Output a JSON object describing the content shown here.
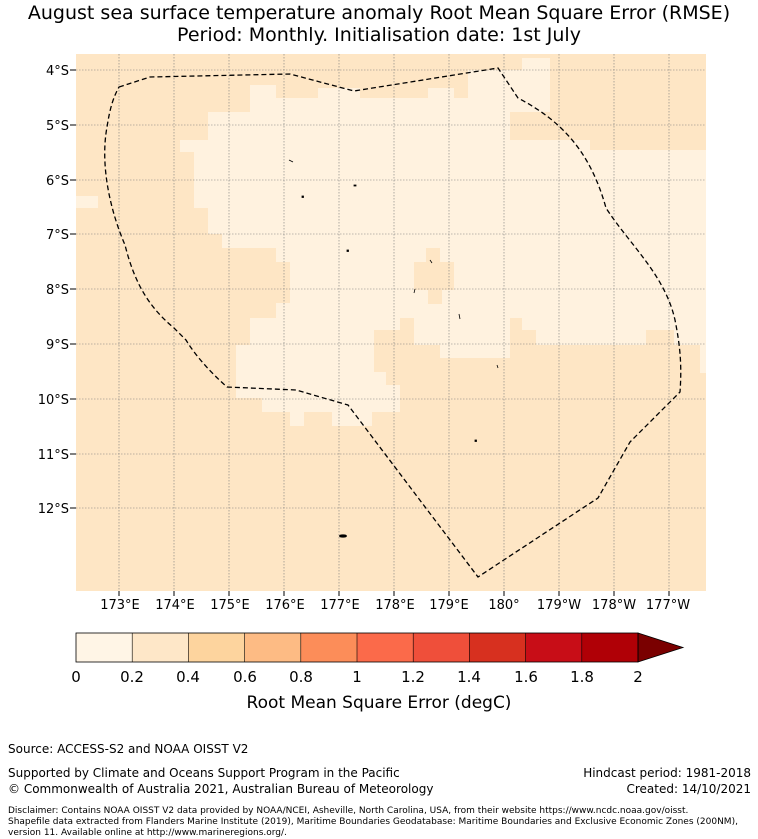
{
  "title_line1": "August sea surface temperature anomaly Root Mean Square Error (RMSE)",
  "title_line2": "Period: Monthly. Initialisation date: 1st July",
  "map": {
    "lat_labels": [
      "4°S",
      "5°S",
      "6°S",
      "7°S",
      "8°S",
      "9°S",
      "10°S",
      "11°S",
      "12°S"
    ],
    "lon_labels": [
      "173°E",
      "174°E",
      "175°E",
      "176°E",
      "177°E",
      "178°E",
      "179°E",
      "180°",
      "179°W",
      "178°W",
      "177°W"
    ],
    "boundary_style": "dashed-black",
    "colors": {
      "bin_0_0_2": "#fff2df",
      "bin_0_2_0_4": "#fee6c5",
      "land": "#000000"
    }
  },
  "colorbar": {
    "colors": [
      "#fff5e6",
      "#fee7c8",
      "#fdd49e",
      "#fdbb84",
      "#fc8d59",
      "#fb6a4a",
      "#ef4f3a",
      "#d7301f",
      "#c80d17",
      "#b00006",
      "#7a0000"
    ],
    "tick_labels": [
      "0",
      "0.2",
      "0.4",
      "0.6",
      "0.8",
      "1",
      "1.2",
      "1.4",
      "1.6",
      "1.8",
      "2"
    ],
    "label": "Root Mean Square Error (degC)"
  },
  "footer": {
    "source": "Source: ACCESS-S2 and NOAA OISST V2",
    "support": "Supported by Climate and Oceans Support Program in the Pacific",
    "copyright": "© Commonwealth of Australia 2021, Australian Bureau of Meteorology",
    "hindcast": "Hindcast period: 1981-2018",
    "created": "Created: 14/10/2021",
    "disclaimer1": "Disclaimer: Contains NOAA OISST V2 data provided by NOAA/NCEI, Asheville, North Carolina, USA, from their website https://www.ncdc.noaa.gov/oisst.",
    "disclaimer2": "Shapefile data extracted from Flanders Marine Institute (2019), Maritime Boundaries Geodatabase: Maritime Boundaries and Exclusive Economic Zones (200NM),",
    "disclaimer3": "version 11. Available online at http://www.marineregions.org/."
  }
}
